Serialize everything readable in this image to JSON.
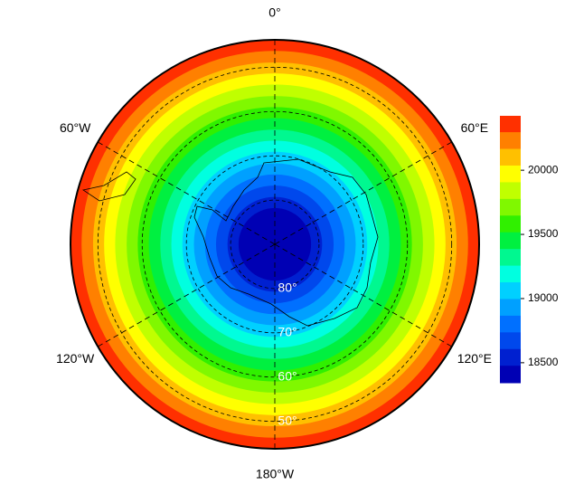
{
  "chart_data": {
    "type": "polar-contour",
    "lat_lim": [
      90,
      43.8
    ],
    "lat_ticks": [
      {
        "value": 80,
        "label": "80°"
      },
      {
        "value": 70,
        "label": "70°"
      },
      {
        "value": 60,
        "label": "60°"
      },
      {
        "value": 50,
        "label": "50°"
      }
    ],
    "lon_ticks": [
      {
        "value": 0,
        "label": "0°"
      },
      {
        "value": 60,
        "label": "60°E"
      },
      {
        "value": 120,
        "label": "120°E"
      },
      {
        "value": 180,
        "label": "180°W"
      },
      {
        "value": -120,
        "label": "120°W"
      },
      {
        "value": -60,
        "label": "60°W"
      }
    ],
    "bands": [
      {
        "level": 18350,
        "outer_lat": 81.8,
        "color": "#0000b4"
      },
      {
        "level": 18480,
        "outer_lat": 79.3,
        "color": "#0020d0"
      },
      {
        "level": 18610,
        "outer_lat": 76.7,
        "color": "#0048ec"
      },
      {
        "level": 18740,
        "outer_lat": 74.2,
        "color": "#0070ff"
      },
      {
        "level": 18870,
        "outer_lat": 71.7,
        "color": "#00a0ff"
      },
      {
        "level": 19000,
        "outer_lat": 69.1,
        "color": "#00d0ff"
      },
      {
        "level": 19130,
        "outer_lat": 66.6,
        "color": "#00ffe0"
      },
      {
        "level": 19260,
        "outer_lat": 64.1,
        "color": "#00f890"
      },
      {
        "level": 19390,
        "outer_lat": 61.5,
        "color": "#00f040"
      },
      {
        "level": 19520,
        "outer_lat": 59.0,
        "color": "#30f000"
      },
      {
        "level": 19650,
        "outer_lat": 56.5,
        "color": "#80f800"
      },
      {
        "level": 19780,
        "outer_lat": 53.9,
        "color": "#c0ff00"
      },
      {
        "level": 19910,
        "outer_lat": 51.4,
        "color": "#ffff00"
      },
      {
        "level": 20040,
        "outer_lat": 48.9,
        "color": "#ffc000"
      },
      {
        "level": 20170,
        "outer_lat": 46.3,
        "color": "#ff8000"
      },
      {
        "level": 20300,
        "outer_lat": 43.8,
        "color": "#ff3000"
      }
    ],
    "clim": [
      18344,
      20424
    ],
    "cticks": [
      18500,
      19000,
      19500,
      20000
    ]
  }
}
